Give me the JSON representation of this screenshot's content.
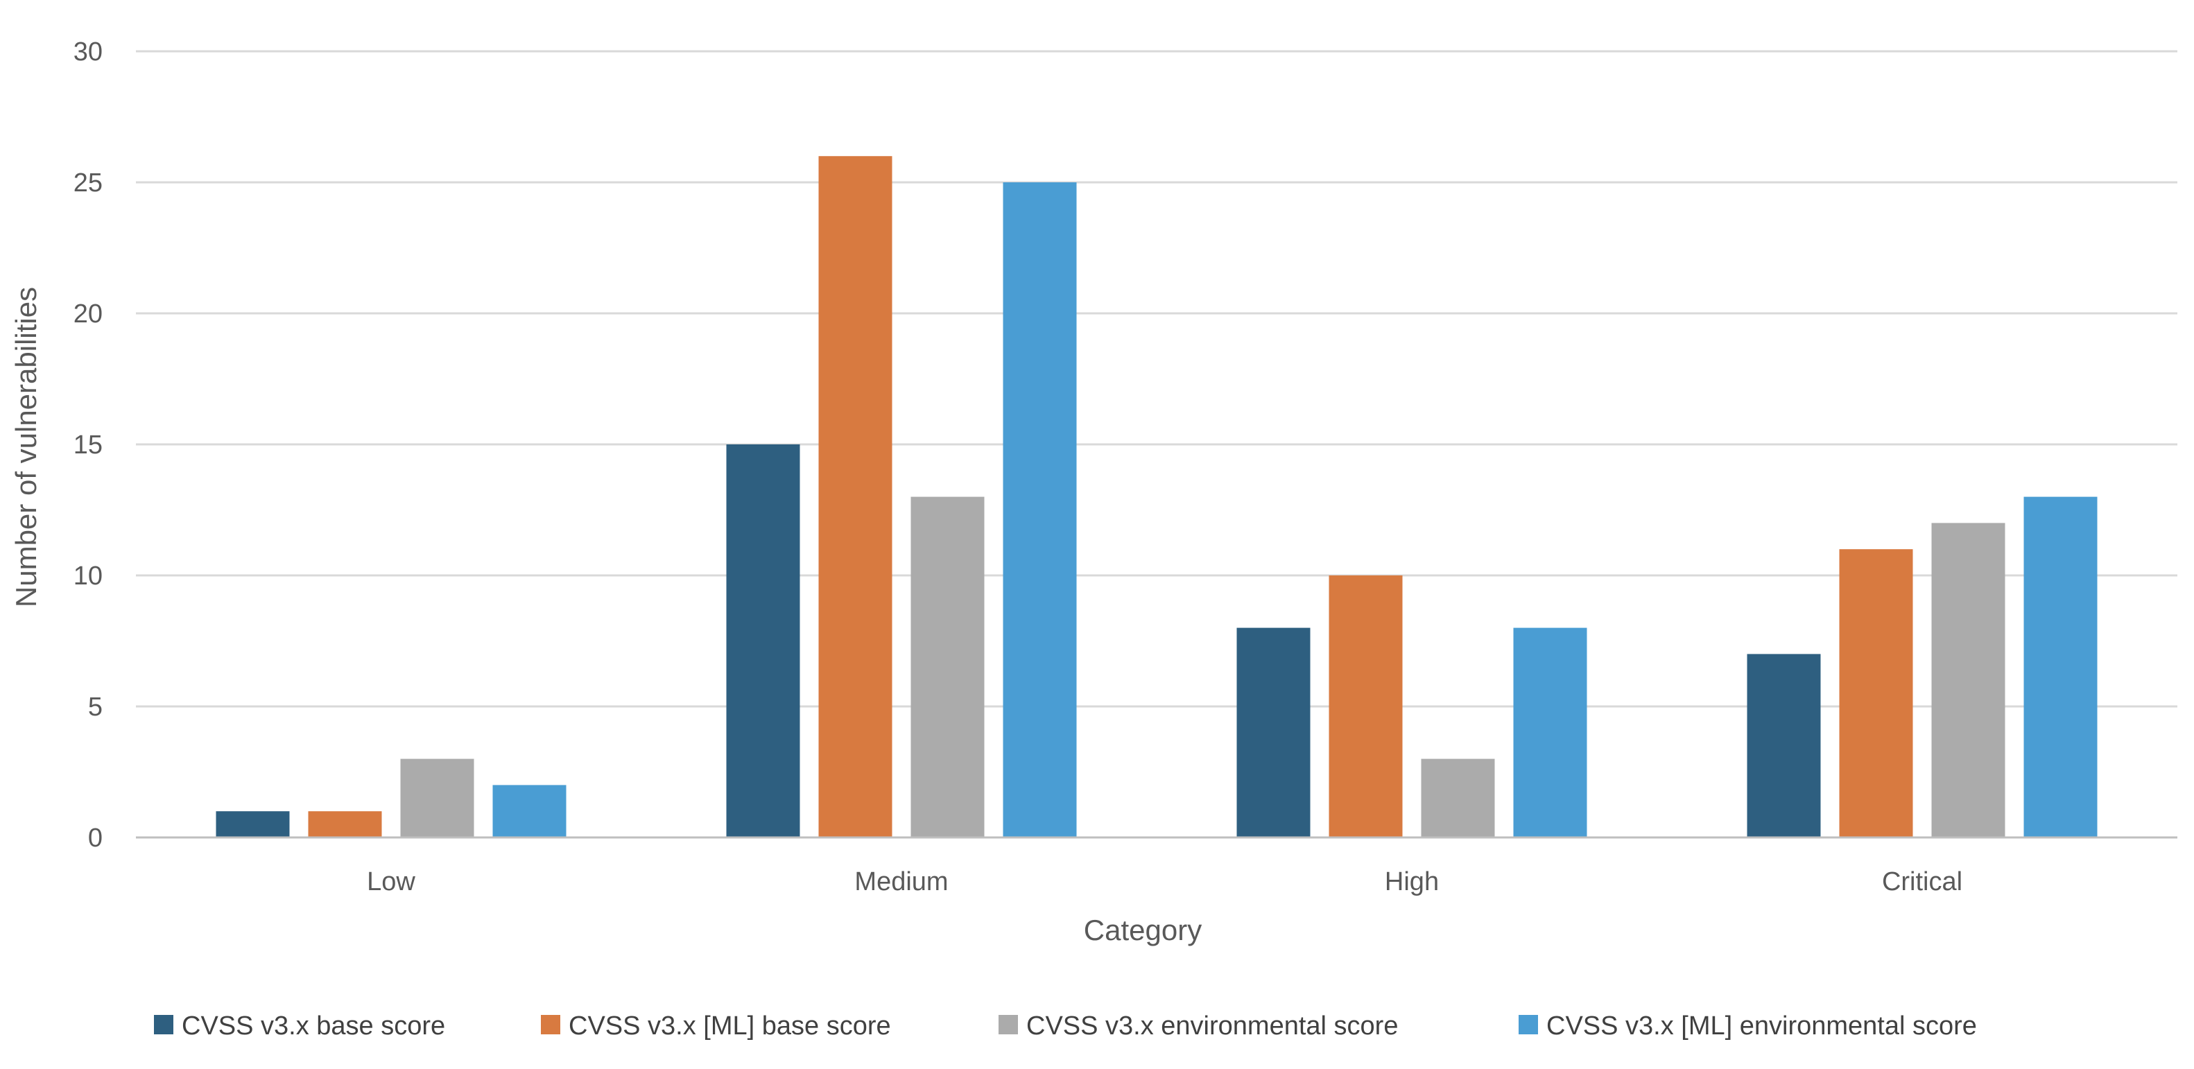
{
  "chart_data": {
    "type": "bar",
    "title": "",
    "xlabel": "Category",
    "ylabel": "Number of vulnerabilities",
    "categories": [
      "Low",
      "Medium",
      "High",
      "Critical"
    ],
    "ylim": [
      0,
      30
    ],
    "yticks": [
      0,
      5,
      10,
      15,
      20,
      25,
      30
    ],
    "grid": true,
    "legend_position": "bottom",
    "series": [
      {
        "name": "CVSS v3.x base score",
        "color": "#2e5f80",
        "values": [
          1,
          15,
          8,
          7
        ]
      },
      {
        "name": "CVSS v3.x [ML] base score",
        "color": "#d87a40",
        "values": [
          1,
          26,
          10,
          11
        ]
      },
      {
        "name": "CVSS v3.x environmental score",
        "color": "#ababab",
        "values": [
          3,
          13,
          3,
          12
        ]
      },
      {
        "name": "CVSS v3.x [ML] environmental score",
        "color": "#4a9dd3",
        "values": [
          2,
          25,
          8,
          13
        ]
      }
    ]
  }
}
